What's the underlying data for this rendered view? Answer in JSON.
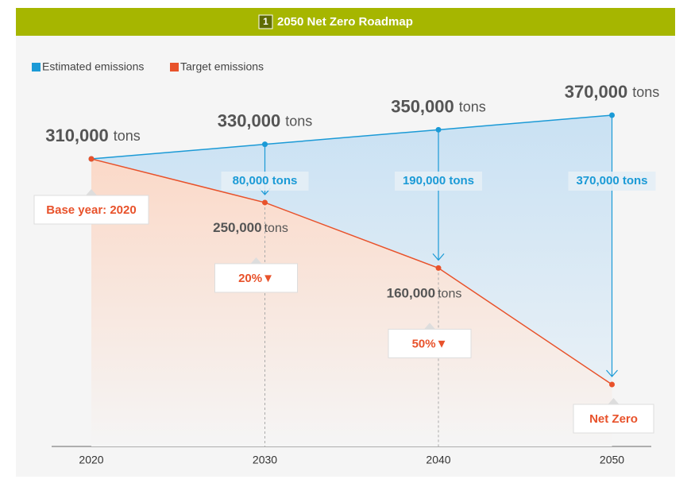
{
  "chart_data": {
    "type": "line",
    "section_number": "1",
    "title": "2050 Net Zero Roadmap",
    "categories": [
      "2020",
      "2030",
      "2040",
      "2050"
    ],
    "unit": "tons",
    "series": [
      {
        "name": "Estimated emissions",
        "color": "#1b9ad6",
        "values": [
          310000,
          330000,
          350000,
          370000
        ],
        "value_labels": [
          "310,000",
          "330,000",
          "350,000",
          "370,000"
        ]
      },
      {
        "name": "Target emissions",
        "color": "#e8522b",
        "values": [
          310000,
          250000,
          160000,
          0
        ],
        "value_labels": [
          null,
          "250,000",
          "160,000",
          null
        ]
      }
    ],
    "reductions": {
      "values": [
        80000,
        190000,
        370000
      ],
      "value_labels": [
        "80,000 tons",
        "190,000 tons",
        "370,000 tons"
      ]
    },
    "reduction_rates": {
      "values": [
        20,
        50
      ],
      "value_labels": [
        "20%▼",
        "50%▼"
      ]
    },
    "base_label": "Base year: 2020",
    "net_zero_label": "Net Zero",
    "ylim": [
      0,
      370000
    ]
  }
}
